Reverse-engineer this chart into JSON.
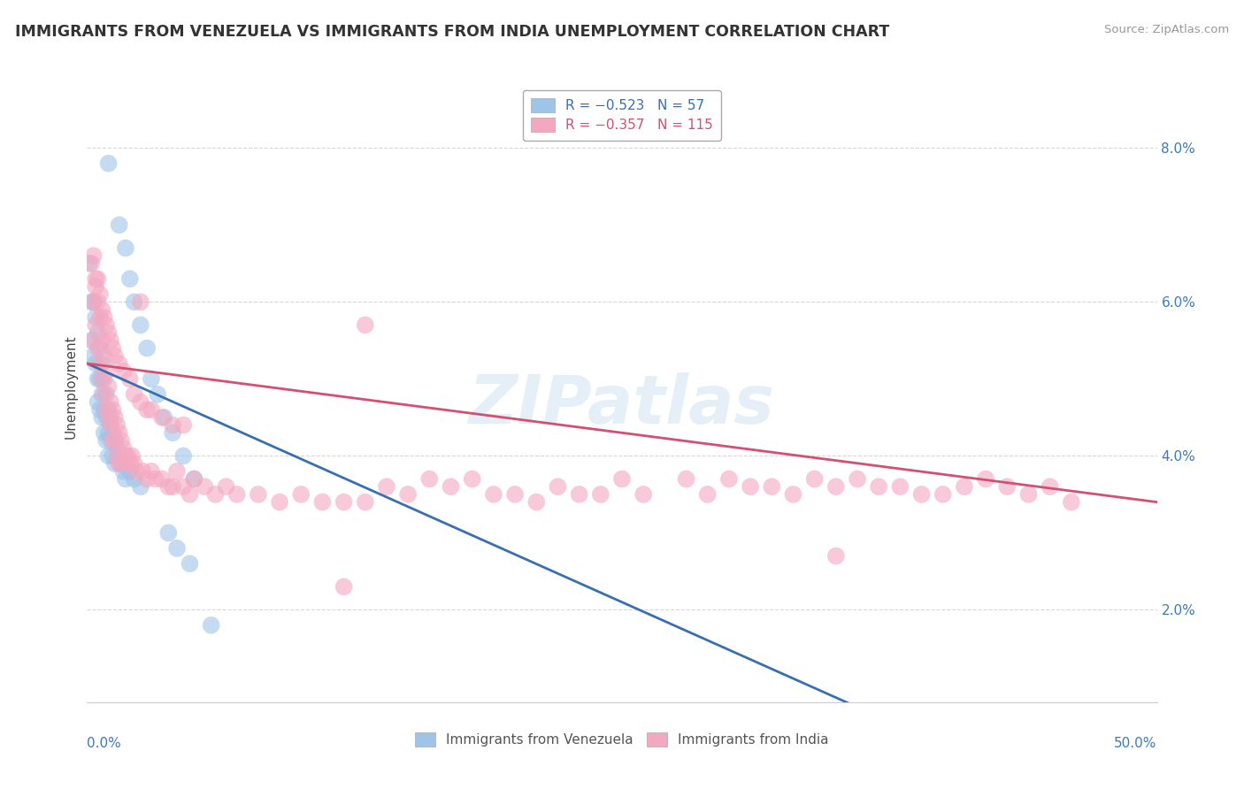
{
  "title": "IMMIGRANTS FROM VENEZUELA VS IMMIGRANTS FROM INDIA UNEMPLOYMENT CORRELATION CHART",
  "source": "Source: ZipAtlas.com",
  "ylabel": "Unemployment",
  "y_tick_labels": [
    "2.0%",
    "4.0%",
    "6.0%",
    "8.0%"
  ],
  "y_tick_values": [
    0.02,
    0.04,
    0.06,
    0.08
  ],
  "x_range": [
    0.0,
    0.5
  ],
  "y_range": [
    0.008,
    0.09
  ],
  "watermark": "ZIPatlas",
  "venezuela_color": "#9ec4e8",
  "india_color": "#f4a8c0",
  "venezuela_line_color": "#3a6faf",
  "india_line_color": "#d45070",
  "background_color": "#ffffff",
  "grid_color": "#d8d8d8",
  "venezuela_points": [
    [
      0.001,
      0.065
    ],
    [
      0.002,
      0.06
    ],
    [
      0.002,
      0.055
    ],
    [
      0.003,
      0.06
    ],
    [
      0.003,
      0.053
    ],
    [
      0.004,
      0.058
    ],
    [
      0.004,
      0.052
    ],
    [
      0.005,
      0.056
    ],
    [
      0.005,
      0.05
    ],
    [
      0.005,
      0.047
    ],
    [
      0.006,
      0.054
    ],
    [
      0.006,
      0.05
    ],
    [
      0.006,
      0.046
    ],
    [
      0.007,
      0.052
    ],
    [
      0.007,
      0.048
    ],
    [
      0.007,
      0.045
    ],
    [
      0.008,
      0.05
    ],
    [
      0.008,
      0.046
    ],
    [
      0.008,
      0.043
    ],
    [
      0.009,
      0.048
    ],
    [
      0.009,
      0.045
    ],
    [
      0.009,
      0.042
    ],
    [
      0.01,
      0.046
    ],
    [
      0.01,
      0.043
    ],
    [
      0.01,
      0.04
    ],
    [
      0.011,
      0.045
    ],
    [
      0.011,
      0.042
    ],
    [
      0.012,
      0.043
    ],
    [
      0.012,
      0.04
    ],
    [
      0.013,
      0.042
    ],
    [
      0.013,
      0.039
    ],
    [
      0.014,
      0.041
    ],
    [
      0.015,
      0.04
    ],
    [
      0.016,
      0.039
    ],
    [
      0.017,
      0.038
    ],
    [
      0.018,
      0.037
    ],
    [
      0.02,
      0.038
    ],
    [
      0.022,
      0.037
    ],
    [
      0.025,
      0.036
    ],
    [
      0.01,
      0.078
    ],
    [
      0.015,
      0.07
    ],
    [
      0.018,
      0.067
    ],
    [
      0.02,
      0.063
    ],
    [
      0.022,
      0.06
    ],
    [
      0.025,
      0.057
    ],
    [
      0.028,
      0.054
    ],
    [
      0.03,
      0.05
    ],
    [
      0.033,
      0.048
    ],
    [
      0.036,
      0.045
    ],
    [
      0.04,
      0.043
    ],
    [
      0.045,
      0.04
    ],
    [
      0.05,
      0.037
    ],
    [
      0.038,
      0.03
    ],
    [
      0.042,
      0.028
    ],
    [
      0.048,
      0.026
    ],
    [
      0.058,
      0.018
    ]
  ],
  "india_points": [
    [
      0.002,
      0.065
    ],
    [
      0.003,
      0.06
    ],
    [
      0.003,
      0.055
    ],
    [
      0.004,
      0.062
    ],
    [
      0.004,
      0.057
    ],
    [
      0.005,
      0.06
    ],
    [
      0.005,
      0.054
    ],
    [
      0.006,
      0.058
    ],
    [
      0.006,
      0.052
    ],
    [
      0.007,
      0.055
    ],
    [
      0.007,
      0.05
    ],
    [
      0.008,
      0.053
    ],
    [
      0.008,
      0.048
    ],
    [
      0.009,
      0.051
    ],
    [
      0.009,
      0.046
    ],
    [
      0.01,
      0.049
    ],
    [
      0.01,
      0.045
    ],
    [
      0.011,
      0.047
    ],
    [
      0.011,
      0.044
    ],
    [
      0.012,
      0.046
    ],
    [
      0.012,
      0.042
    ],
    [
      0.013,
      0.045
    ],
    [
      0.013,
      0.042
    ],
    [
      0.014,
      0.044
    ],
    [
      0.014,
      0.04
    ],
    [
      0.015,
      0.043
    ],
    [
      0.015,
      0.039
    ],
    [
      0.016,
      0.042
    ],
    [
      0.016,
      0.039
    ],
    [
      0.017,
      0.041
    ],
    [
      0.018,
      0.04
    ],
    [
      0.019,
      0.04
    ],
    [
      0.02,
      0.039
    ],
    [
      0.021,
      0.04
    ],
    [
      0.022,
      0.039
    ],
    [
      0.023,
      0.038
    ],
    [
      0.025,
      0.06
    ],
    [
      0.026,
      0.038
    ],
    [
      0.028,
      0.037
    ],
    [
      0.03,
      0.038
    ],
    [
      0.032,
      0.037
    ],
    [
      0.035,
      0.037
    ],
    [
      0.038,
      0.036
    ],
    [
      0.04,
      0.036
    ],
    [
      0.042,
      0.038
    ],
    [
      0.045,
      0.036
    ],
    [
      0.048,
      0.035
    ],
    [
      0.05,
      0.037
    ],
    [
      0.055,
      0.036
    ],
    [
      0.06,
      0.035
    ],
    [
      0.065,
      0.036
    ],
    [
      0.07,
      0.035
    ],
    [
      0.08,
      0.035
    ],
    [
      0.09,
      0.034
    ],
    [
      0.1,
      0.035
    ],
    [
      0.11,
      0.034
    ],
    [
      0.12,
      0.034
    ],
    [
      0.13,
      0.034
    ],
    [
      0.14,
      0.036
    ],
    [
      0.15,
      0.035
    ],
    [
      0.16,
      0.037
    ],
    [
      0.17,
      0.036
    ],
    [
      0.18,
      0.037
    ],
    [
      0.19,
      0.035
    ],
    [
      0.2,
      0.035
    ],
    [
      0.21,
      0.034
    ],
    [
      0.22,
      0.036
    ],
    [
      0.23,
      0.035
    ],
    [
      0.24,
      0.035
    ],
    [
      0.25,
      0.037
    ],
    [
      0.26,
      0.035
    ],
    [
      0.28,
      0.037
    ],
    [
      0.29,
      0.035
    ],
    [
      0.3,
      0.037
    ],
    [
      0.31,
      0.036
    ],
    [
      0.32,
      0.036
    ],
    [
      0.33,
      0.035
    ],
    [
      0.34,
      0.037
    ],
    [
      0.35,
      0.036
    ],
    [
      0.36,
      0.037
    ],
    [
      0.37,
      0.036
    ],
    [
      0.38,
      0.036
    ],
    [
      0.39,
      0.035
    ],
    [
      0.4,
      0.035
    ],
    [
      0.41,
      0.036
    ],
    [
      0.42,
      0.037
    ],
    [
      0.43,
      0.036
    ],
    [
      0.44,
      0.035
    ],
    [
      0.45,
      0.036
    ],
    [
      0.46,
      0.034
    ],
    [
      0.003,
      0.066
    ],
    [
      0.004,
      0.063
    ],
    [
      0.005,
      0.063
    ],
    [
      0.006,
      0.061
    ],
    [
      0.007,
      0.059
    ],
    [
      0.008,
      0.058
    ],
    [
      0.009,
      0.057
    ],
    [
      0.01,
      0.056
    ],
    [
      0.011,
      0.055
    ],
    [
      0.012,
      0.054
    ],
    [
      0.013,
      0.053
    ],
    [
      0.015,
      0.052
    ],
    [
      0.017,
      0.051
    ],
    [
      0.02,
      0.05
    ],
    [
      0.022,
      0.048
    ],
    [
      0.025,
      0.047
    ],
    [
      0.028,
      0.046
    ],
    [
      0.03,
      0.046
    ],
    [
      0.035,
      0.045
    ],
    [
      0.04,
      0.044
    ],
    [
      0.045,
      0.044
    ],
    [
      0.12,
      0.023
    ],
    [
      0.35,
      0.027
    ],
    [
      0.13,
      0.057
    ]
  ],
  "venezuela_trend": {
    "x_start": 0.0,
    "y_start": 0.052,
    "x_end": 0.5,
    "y_end": -0.01,
    "solid_end": 0.4
  },
  "india_trend": {
    "x_start": 0.0,
    "y_start": 0.052,
    "x_end": 0.5,
    "y_end": 0.034
  }
}
